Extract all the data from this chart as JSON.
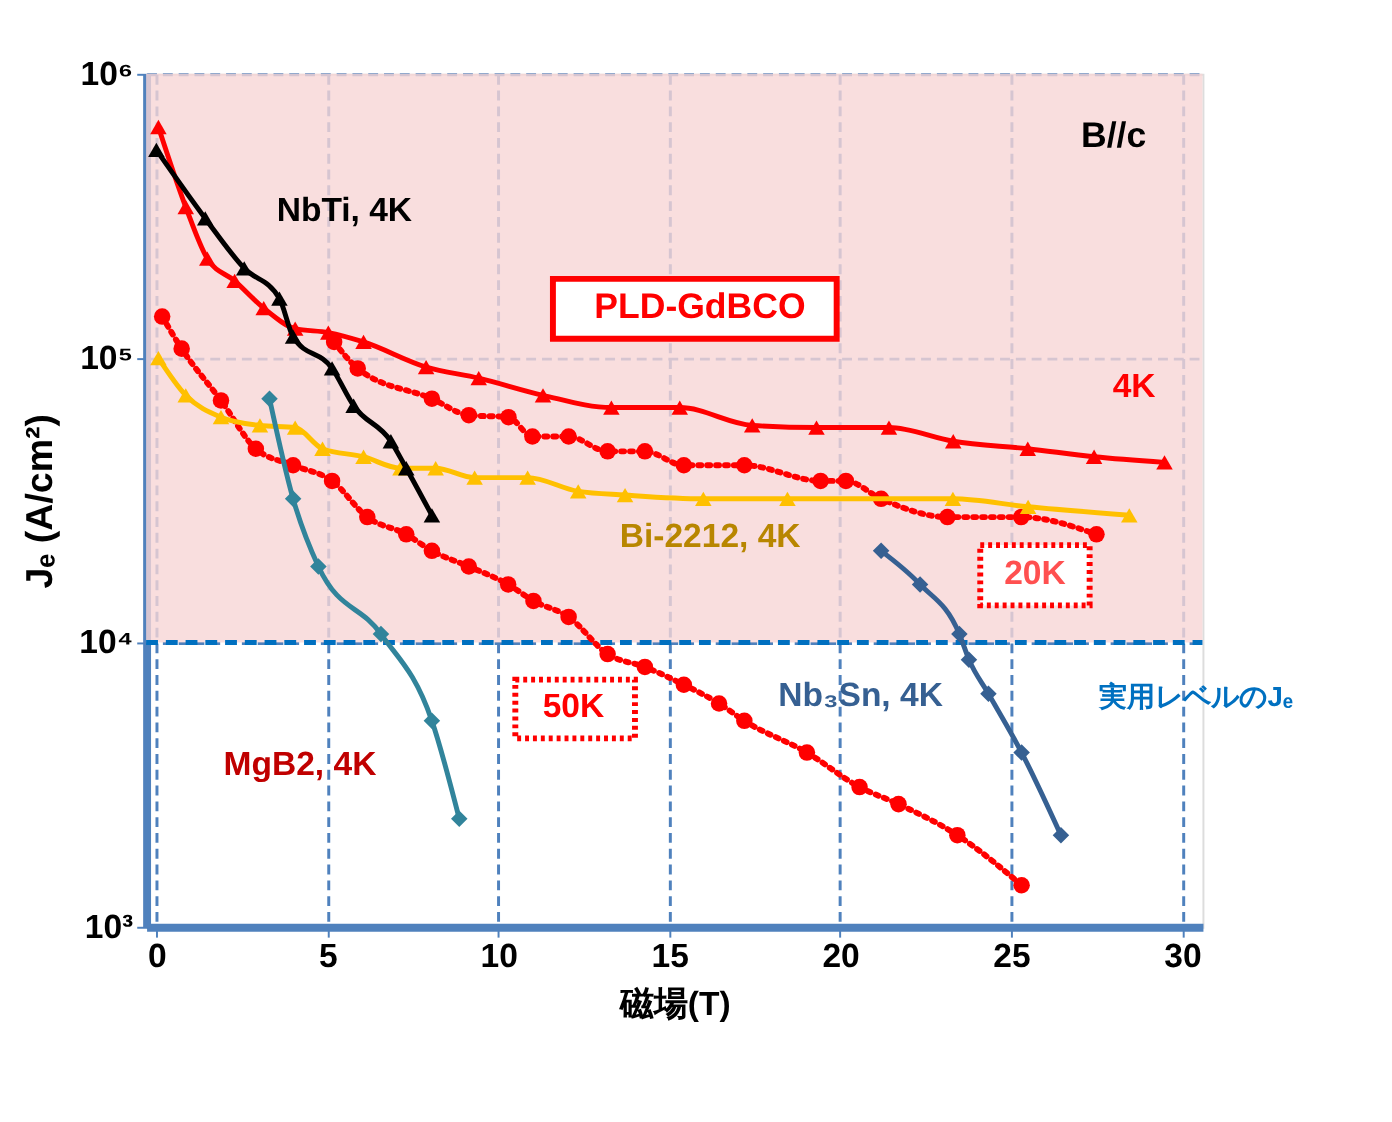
{
  "chart_data": {
    "type": "line",
    "xlabel": "磁場(T)",
    "ylabel": "Jₑ (A/cm²)",
    "xlim": [
      -0.3,
      30.6
    ],
    "xticks": [
      0,
      5,
      10,
      15,
      20,
      25,
      30
    ],
    "ylim": [
      1000,
      1000000
    ],
    "yticks": [
      {
        "value": 1000,
        "label": "10³"
      },
      {
        "value": 10000,
        "label": "10⁴"
      },
      {
        "value": 100000,
        "label": "10⁵"
      },
      {
        "value": 1000000,
        "label": "10⁶"
      }
    ],
    "log": "y",
    "grid": true,
    "annotations": [
      "PLD-GdBCO",
      "B//c"
    ],
    "ref_lines": [
      {
        "axis": "y",
        "value": 10000,
        "label": "実用レベルのJₑ",
        "color": "#0070c0",
        "line_style": "dashed"
      }
    ],
    "bands": [
      {
        "axis": "y",
        "from": 10000,
        "to": 1000000,
        "color": "#f7d6d6"
      }
    ],
    "series": [
      {
        "name": "4K",
        "color": "#ff0000",
        "marker": "triangle",
        "line_style": "solid",
        "x": [
          0.06,
          0.86,
          1.49,
          2.29,
          3.14,
          4.06,
          5.03,
          6.06,
          7.89,
          9.43,
          11.31,
          13.31,
          15.31,
          17.43,
          19.31,
          21.43,
          23.31,
          25.49,
          27.43,
          29.49
        ],
        "values": [
          650000,
          340000,
          224000,
          187000,
          150000,
          127000,
          123000,
          114000,
          93000,
          85000,
          74000,
          67000,
          67000,
          58000,
          57000,
          57000,
          51000,
          48000,
          45000,
          43000
        ]
      },
      {
        "name": "20K",
        "color": "#ff0000",
        "marker": "circle",
        "line_style": "dotted",
        "x": [
          5.2,
          5.89,
          8.06,
          9.14,
          10.3,
          11.0,
          12.06,
          13.2,
          14.29,
          15.43,
          17.2,
          19.43,
          20.17,
          21.2,
          23.14,
          25.3,
          27.5
        ],
        "values": [
          114000,
          92000,
          72000,
          63000,
          62000,
          53000,
          53000,
          47000,
          47000,
          42000,
          42000,
          37000,
          37000,
          32000,
          27600,
          27600,
          24000
        ]
      },
      {
        "name": "50K",
        "color": "#ff0000",
        "marker": "circle",
        "line_style": "dotted",
        "x": [
          0.17,
          0.74,
          1.89,
          2.91,
          4.0,
          5.14,
          6.17,
          7.31,
          8.06,
          9.14,
          10.29,
          11.03,
          12.06,
          13.2,
          14.29,
          15.43,
          16.46,
          17.2,
          19.03,
          20.57,
          21.71,
          23.43,
          25.31
        ],
        "values": [
          140000,
          108000,
          71000,
          48000,
          42000,
          37000,
          27600,
          24000,
          21000,
          18500,
          16000,
          14000,
          12300,
          9100,
          8200,
          7100,
          6100,
          5300,
          4100,
          3100,
          2700,
          2100,
          1400
        ]
      },
      {
        "name": "Bi-2212,  4K",
        "color": "#ffc000",
        "marker": "triangle",
        "line_style": "solid",
        "x": [
          0.06,
          0.86,
          1.89,
          3.03,
          4.06,
          4.86,
          6.06,
          7.14,
          8.17,
          9.31,
          10.86,
          12.34,
          13.71,
          16.0,
          18.46,
          23.3,
          25.5,
          28.46
        ],
        "values": [
          100000,
          74000,
          62000,
          58000,
          57000,
          48000,
          45000,
          41000,
          41000,
          38000,
          38000,
          34000,
          33000,
          32000,
          32000,
          32000,
          30000,
          28000
        ]
      },
      {
        "name": "NbTi,  4K",
        "color": "#000000",
        "marker": "triangle",
        "line_style": "solid",
        "x": [
          0,
          1.43,
          2.57,
          3.6,
          4.0,
          5.14,
          5.77,
          6.86,
          7.31,
          8.06
        ],
        "values": [
          540000,
          310000,
          207000,
          162000,
          119000,
          92000,
          68000,
          51000,
          41000,
          28000
        ]
      },
      {
        "name": "MgB2, 4K",
        "color": "#31849b",
        "marker": "diamond",
        "line_style": "solid",
        "x": [
          3.31,
          4.0,
          4.74,
          6.57,
          8.06,
          8.86
        ],
        "values": [
          72000,
          32000,
          18500,
          10700,
          5300,
          2400
        ]
      },
      {
        "name": "Nb₃Sn, 4K",
        "color": "#366092",
        "marker": "diamond",
        "line_style": "solid",
        "x": [
          21.2,
          22.34,
          23.49,
          23.77,
          24.34,
          25.31,
          26.46
        ],
        "values": [
          21000,
          16000,
          10700,
          8700,
          6600,
          4100,
          2100
        ]
      }
    ]
  }
}
